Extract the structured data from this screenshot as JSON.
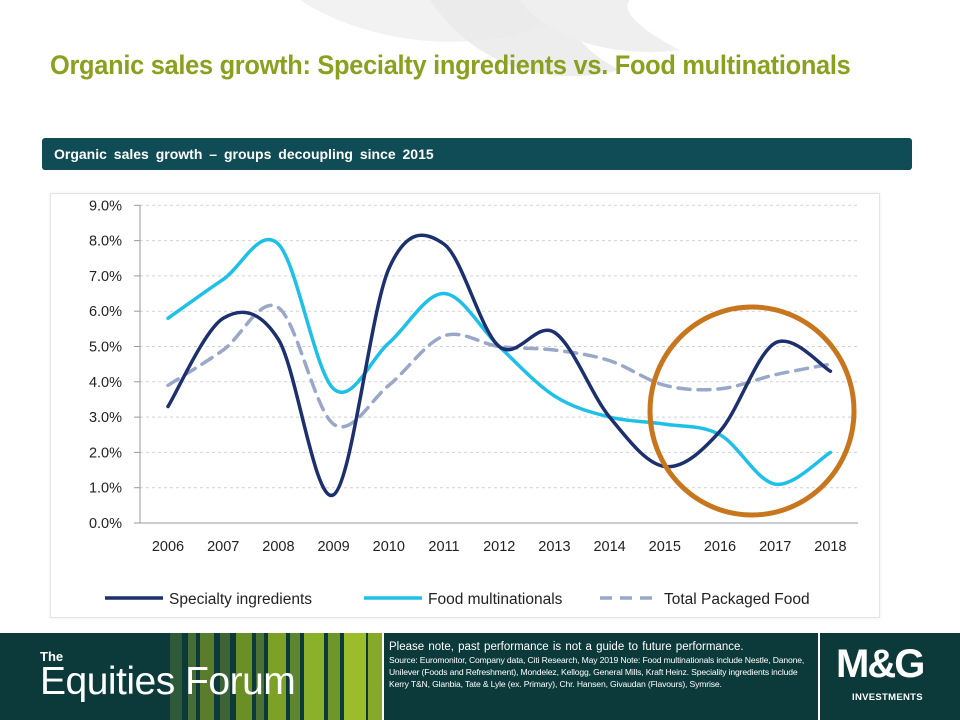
{
  "slide": {
    "title": "Organic sales growth: Specialty ingredients vs. Food multinationals",
    "banner": "Organic sales growth – groups decoupling since 2015"
  },
  "chart_data": {
    "type": "line",
    "x": [
      "2006",
      "2007",
      "2008",
      "2009",
      "2010",
      "2011",
      "2012",
      "2013",
      "2014",
      "2015",
      "2016",
      "2017",
      "2018"
    ],
    "ylim": [
      0,
      9
    ],
    "yticks": [
      "0.0%",
      "1.0%",
      "2.0%",
      "3.0%",
      "4.0%",
      "5.0%",
      "6.0%",
      "7.0%",
      "8.0%",
      "9.0%"
    ],
    "grid": "horizontal dashed",
    "legend": "bottom",
    "series": [
      {
        "name": "Specialty ingredients",
        "color": "#1c2f6e",
        "style": "solid",
        "values": [
          3.3,
          5.8,
          5.2,
          0.8,
          7.2,
          7.9,
          5.0,
          5.4,
          3.0,
          1.6,
          2.6,
          5.1,
          4.3
        ]
      },
      {
        "name": "Food multinationals",
        "color": "#1ec0e8",
        "style": "solid",
        "values": [
          5.8,
          6.9,
          7.9,
          3.8,
          5.1,
          6.5,
          5.0,
          3.6,
          3.0,
          2.8,
          2.5,
          1.1,
          2.0
        ]
      },
      {
        "name": "Total Packaged Food",
        "color": "#99a7c8",
        "style": "dashed",
        "values": [
          3.9,
          4.9,
          6.1,
          2.8,
          3.9,
          5.3,
          5.0,
          4.9,
          4.6,
          3.9,
          3.8,
          4.2,
          4.5
        ]
      }
    ],
    "highlight_color": "#c8761e"
  },
  "footer": {
    "brand_small": "The",
    "brand_big": "Equities Forum",
    "disclaimer": "Please note, past performance is not a guide to future performance.",
    "source": "Source: Euromonitor, Company data, Citi Research, May 2019 Note: Food multinationals include Nestle, Danone, Unilever (Foods and Refreshment), Mondelez, Kellogg, General Mills, Kraft Heinz. Speciality ingredients include Kerry T&N, Glanbia, Tate & Lyle (ex. Primary), Chr. Hansen, Givaudan (Flavours), Symrise.",
    "logo": "M&G",
    "logo_sub": "INVESTMENTS"
  }
}
